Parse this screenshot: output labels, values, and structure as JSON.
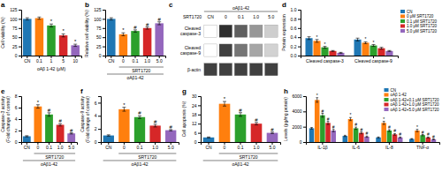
{
  "chart_data": [
    {
      "type": "bar",
      "title": "a",
      "xlabel": "oAβ 1-42 (μM)",
      "ylabel": "Cell viability (%)",
      "categories": [
        "CN",
        "0.1",
        "1",
        "5",
        "10"
      ],
      "values": [
        100,
        102,
        82,
        55,
        28
      ],
      "errors": [
        3,
        3,
        4,
        4,
        3
      ],
      "significance": [
        null,
        null,
        "*",
        "*",
        "*"
      ],
      "ylim": [
        0,
        125
      ],
      "yticks": [
        0,
        25,
        50,
        75,
        100,
        125
      ]
    },
    {
      "type": "bar",
      "title": "b",
      "ylabel": "Relative cell viability (%)",
      "categories": [
        "CN",
        "0",
        "0.1",
        "1.0",
        "5.0"
      ],
      "values": [
        100,
        58,
        67,
        75,
        88
      ],
      "errors": [
        3,
        4,
        3,
        3,
        4
      ],
      "significance": [
        null,
        "*",
        "#",
        "#",
        "#"
      ],
      "annotations": [
        "SRT1720",
        "oAβ1-42"
      ],
      "ylim": [
        0,
        125
      ],
      "yticks": [
        0,
        25,
        50,
        75,
        100,
        125
      ]
    },
    {
      "type": "heatmap",
      "title": "c",
      "categories": [
        "CN",
        "0",
        "0.1",
        "1.0",
        "5.0"
      ],
      "y_categories": [
        "Cleaved\ncaspase-3",
        "Cleaved\ncaspase-9",
        "β-actin"
      ],
      "values": [
        [
          0,
          0.85,
          0.7,
          0.5,
          0.3
        ],
        [
          0,
          0.8,
          0.62,
          0.45,
          0.28
        ],
        [
          0.8,
          0.8,
          0.8,
          0.8,
          0.8
        ]
      ],
      "annotations": [
        "SRT1720",
        "oAβ1-42"
      ]
    },
    {
      "type": "bar",
      "title": "d",
      "ylabel": "Protein expression",
      "categories": [
        "Cleaved caspase-3",
        "Cleaved caspase-9"
      ],
      "series": [
        {
          "name": "CN",
          "values": [
            0.38,
            0.35
          ],
          "errors": [
            0.03,
            0.03
          ]
        },
        {
          "name": "0 μM SRT1720",
          "values": [
            0.32,
            0.28
          ],
          "errors": [
            0.03,
            0.02
          ],
          "significance": [
            "*",
            "*"
          ]
        },
        {
          "name": "0.1 μM SRT1720",
          "values": [
            0.18,
            0.22
          ],
          "errors": [
            0.02,
            0.02
          ],
          "significance": [
            "*",
            "*"
          ]
        },
        {
          "name": "1.0 μM SRT1720",
          "values": [
            0.1,
            0.16
          ],
          "errors": [
            0.01,
            0.02
          ]
        },
        {
          "name": "5.0 μM SRT1720",
          "values": [
            0.06,
            0.1
          ],
          "errors": [
            0.01,
            0.01
          ]
        }
      ],
      "ylim": [
        0,
        1.0
      ],
      "yticks": [
        {
          "value": 0,
          "label": "0.0"
        },
        0.2,
        0.4,
        0.6,
        0.8,
        {
          "value": 1.0,
          "label": "1.0"
        }
      ],
      "legend": "right"
    },
    {
      "type": "bar",
      "title": "e",
      "ylabel": "Caspase-3 activity\n(Fold change of control)",
      "categories": [
        "CN",
        "0",
        "0.1",
        "1.0",
        "5.0"
      ],
      "values": [
        1.0,
        6.2,
        4.8,
        3.0,
        1.5
      ],
      "errors": [
        0.1,
        0.3,
        0.3,
        0.2,
        0.1
      ],
      "significance": [
        null,
        "*",
        "#",
        "#",
        "#"
      ],
      "annotations": [
        "SRT1720",
        "oAβ1-42"
      ],
      "ylim": [
        0,
        8
      ],
      "yticks": [
        0,
        2,
        4,
        6,
        8
      ]
    },
    {
      "type": "bar",
      "title": "f",
      "ylabel": "Caspase-9 activity\n(Fold change of control)",
      "categories": [
        "CN",
        "0",
        "0.1",
        "1.0",
        "5.0"
      ],
      "values": [
        1.0,
        5.0,
        3.8,
        2.5,
        1.8
      ],
      "errors": [
        0.1,
        0.3,
        0.2,
        0.2,
        0.1
      ],
      "significance": [
        null,
        "*",
        "#",
        "#",
        "#"
      ],
      "annotations": [
        "SRT1720",
        "oAβ1-42"
      ],
      "ylim": [
        0,
        7
      ],
      "yticks": [
        0,
        2,
        4,
        6
      ]
    },
    {
      "type": "bar",
      "title": "g",
      "ylabel": "Cell apoptosis (%)",
      "categories": [
        "CN",
        "0",
        "0.1",
        "1.0",
        "5.0"
      ],
      "values": [
        3,
        25,
        18,
        12,
        6
      ],
      "errors": [
        0.3,
        1.5,
        1.2,
        0.8,
        0.5
      ],
      "significance": [
        null,
        "*",
        "#",
        "#",
        "#"
      ],
      "annotations": [
        "SRT1720",
        "oAβ1-42"
      ],
      "ylim": [
        0,
        30
      ],
      "yticks": [
        0,
        6,
        12,
        18,
        24,
        30
      ]
    },
    {
      "type": "bar",
      "title": "h",
      "ylabel": "Levels (pg/mg protein)",
      "categories": [
        "IL-1β",
        "IL-6",
        "IL-8",
        "TNF-α"
      ],
      "series": [
        {
          "name": "CN",
          "values": [
            1800,
            800,
            600,
            400
          ],
          "errors": [
            100,
            80,
            60,
            50
          ]
        },
        {
          "name": "oAβ 1-42",
          "values": [
            5500,
            3000,
            2500,
            1500
          ],
          "errors": [
            300,
            200,
            200,
            150
          ],
          "significance": [
            "*",
            "*",
            "*",
            "*"
          ]
        },
        {
          "name": "oAβ 1-42+0.1 μM SRT1720",
          "values": [
            3500,
            1800,
            1500,
            900
          ],
          "errors": [
            250,
            150,
            120,
            80
          ],
          "significance": [
            "#",
            "#",
            "#",
            "#"
          ]
        },
        {
          "name": "oAβ 1-42+1.0 μM SRT1720",
          "values": [
            2500,
            1200,
            1000,
            600
          ],
          "errors": [
            200,
            120,
            100,
            60
          ],
          "significance": [
            "#",
            "#",
            "#",
            "#"
          ]
        },
        {
          "name": "oAβ 1-42+5.0 μM SRT1720",
          "values": [
            1500,
            700,
            600,
            350
          ],
          "errors": [
            150,
            80,
            60,
            40
          ],
          "significance": [
            "#",
            "#",
            "#",
            "#"
          ]
        }
      ],
      "ylim": [
        0,
        6000
      ],
      "yticks": [
        0,
        2000,
        4000,
        6000
      ],
      "legend": "upper right"
    }
  ]
}
